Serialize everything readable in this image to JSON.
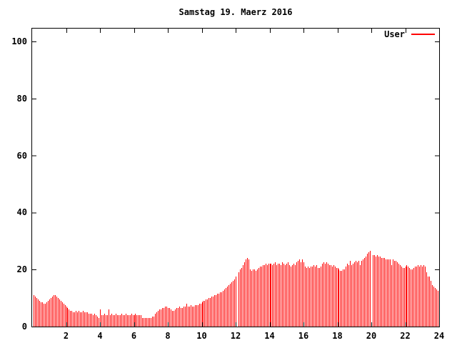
{
  "chart": {
    "title": "Samstag 19. Maerz 2016",
    "legend": {
      "label": "User",
      "position": "top-right"
    },
    "colors": {
      "bar": "#ff0000",
      "axis": "#000000",
      "text": "#000000",
      "background": "#ffffff"
    }
  },
  "chart_data": {
    "type": "bar",
    "style": "impulses",
    "title": "Samstag 19. Maerz 2016",
    "xlabel": "",
    "ylabel": "",
    "xlim": [
      0,
      24
    ],
    "ylim": [
      0,
      104.5
    ],
    "xticks": [
      2,
      4,
      6,
      8,
      10,
      12,
      14,
      16,
      18,
      20,
      22,
      24
    ],
    "yticks": [
      0,
      20,
      40,
      60,
      80,
      100
    ],
    "grid": false,
    "legend_position": "top-right",
    "sample_interval_hours": 0.0833,
    "annotations": "5-minute samples over 24h; missing samples (white gaps) at 12:05 and 20:00",
    "series": [
      {
        "name": "User",
        "color": "#ff0000",
        "values": [
          11,
          10.5,
          10,
          9.5,
          9,
          8.5,
          8.5,
          8,
          8,
          8.5,
          9,
          9.5,
          10,
          10.5,
          11,
          11,
          10.5,
          10,
          9.5,
          9,
          8.5,
          8,
          7.5,
          7,
          6.5,
          6,
          5.5,
          5.5,
          5,
          5,
          5.5,
          5,
          5.5,
          5,
          5,
          5.5,
          5,
          5,
          5,
          4.5,
          4.5,
          4.5,
          4,
          4.5,
          4,
          3.5,
          3,
          6,
          4,
          4,
          4.5,
          4,
          4,
          6,
          4,
          4.5,
          4,
          4,
          4.5,
          4,
          4,
          4,
          4.5,
          4,
          4,
          4.5,
          4,
          4,
          4,
          4.5,
          4,
          4,
          4.5,
          4,
          4,
          4,
          4,
          3,
          3,
          3,
          3,
          3,
          3,
          3,
          3.5,
          3.5,
          4.5,
          5,
          5.5,
          6,
          6,
          6.5,
          6.5,
          7,
          7,
          6.5,
          6.5,
          6,
          5.5,
          5.5,
          6,
          6.5,
          6.5,
          7,
          6.5,
          6.5,
          7,
          7,
          8,
          7,
          7,
          7.5,
          7,
          7,
          7.5,
          7.5,
          7.5,
          8,
          8,
          8.5,
          9,
          9,
          9.5,
          9.5,
          10,
          10,
          10.5,
          10.5,
          11,
          11,
          11.5,
          11.5,
          12,
          12,
          12.5,
          13,
          13.5,
          14,
          14.5,
          15,
          15.5,
          16,
          16.5,
          17.5,
          0,
          19,
          20,
          20.5,
          21.5,
          22.5,
          23.5,
          24,
          23.5,
          20,
          19.5,
          20,
          20,
          19.5,
          20,
          20.5,
          21,
          21,
          21.5,
          21.5,
          22,
          21.5,
          22,
          22,
          22,
          21.5,
          22,
          22.5,
          21.5,
          22,
          22,
          21.5,
          22.5,
          22,
          21.5,
          22,
          22.5,
          21.5,
          21,
          21.5,
          22,
          21.5,
          22.5,
          23,
          23.5,
          22.5,
          23.5,
          22.5,
          21,
          20.5,
          21,
          20.5,
          21,
          21,
          21.5,
          21,
          21.5,
          20.5,
          20.5,
          21,
          22,
          22.5,
          22,
          22.5,
          22,
          21.5,
          21.5,
          21,
          21.5,
          21,
          20.5,
          20.5,
          20,
          19.5,
          19.5,
          20,
          20,
          21,
          22,
          21.5,
          23,
          21.5,
          22,
          22.5,
          23,
          22.5,
          23,
          21.5,
          23,
          23.5,
          24,
          24.5,
          25.5,
          26,
          26.5,
          0,
          25,
          25,
          24.5,
          25,
          24.5,
          24.5,
          24,
          24,
          24,
          23.5,
          23.5,
          23.5,
          23.5,
          21.5,
          23.5,
          23,
          23,
          22.5,
          22,
          21.5,
          21,
          20.5,
          20.5,
          21,
          21.5,
          21,
          20.5,
          20,
          20,
          20.5,
          21,
          21,
          21.5,
          21,
          21.5,
          21,
          21.5,
          21,
          19,
          17.5,
          17.5,
          16,
          14.5,
          14,
          13.5,
          13,
          12.5,
          12.5
        ]
      }
    ]
  }
}
